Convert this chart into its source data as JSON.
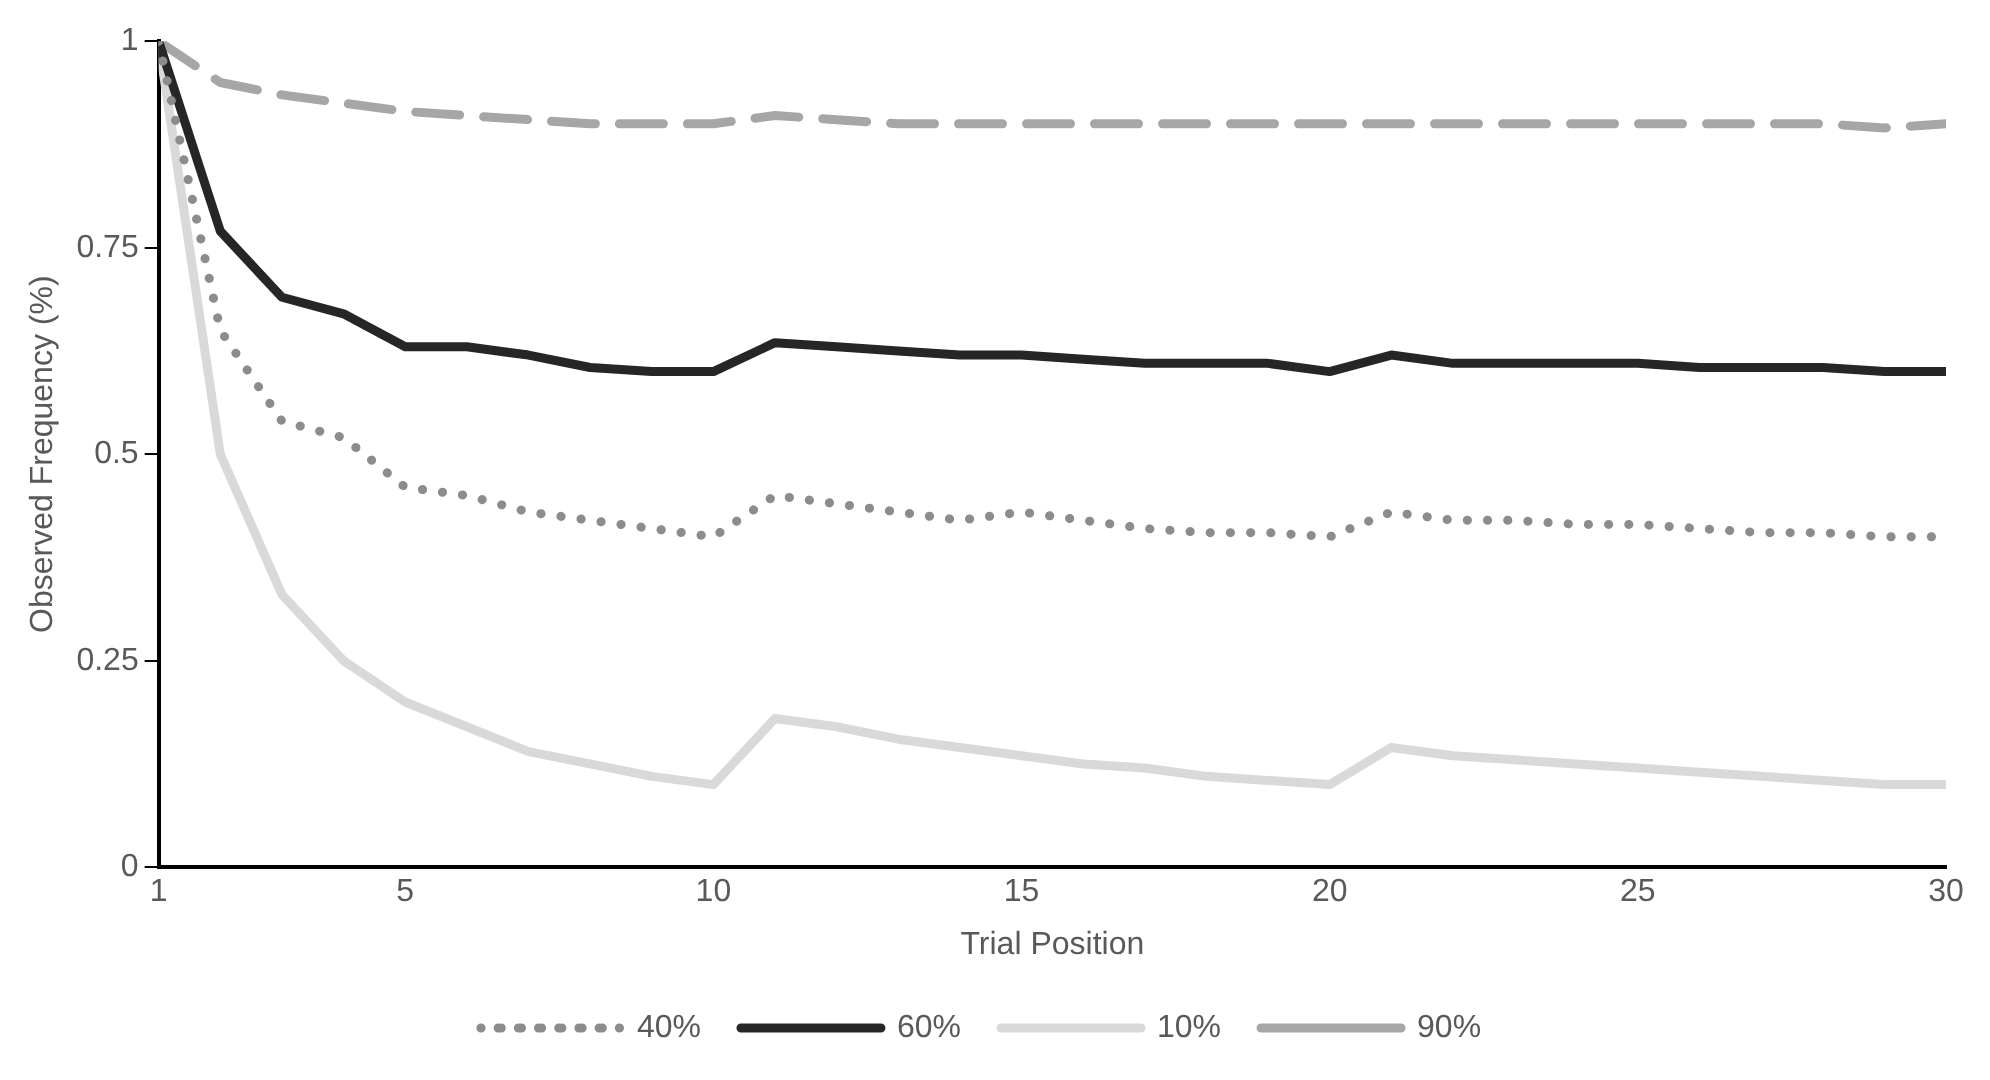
{
  "chart_data": {
    "type": "line",
    "xlabel": "Trial Position",
    "ylabel": "Observed Frequency (%)",
    "x": [
      1,
      2,
      3,
      4,
      5,
      6,
      7,
      8,
      9,
      10,
      11,
      12,
      13,
      14,
      15,
      16,
      17,
      18,
      19,
      20,
      21,
      22,
      23,
      24,
      25,
      26,
      27,
      28,
      29,
      30
    ],
    "xlim": [
      1,
      30
    ],
    "xticks": [
      1,
      5,
      10,
      15,
      20,
      25,
      30
    ],
    "ylim": [
      0,
      1
    ],
    "yticks": [
      0,
      0.25,
      0.5,
      0.75,
      1
    ],
    "grid": false,
    "legend": "bottom",
    "marker": "none",
    "series": [
      {
        "name": "40%",
        "color": "#8c8c8c",
        "line_style": "dotted",
        "values": [
          1,
          0.65,
          0.54,
          0.52,
          0.46,
          0.45,
          0.43,
          0.42,
          0.41,
          0.4,
          0.45,
          0.44,
          0.43,
          0.42,
          0.43,
          0.42,
          0.41,
          0.405,
          0.405,
          0.4,
          0.43,
          0.42,
          0.42,
          0.415,
          0.415,
          0.41,
          0.405,
          0.405,
          0.4,
          0.4
        ]
      },
      {
        "name": "60%",
        "color": "#262626",
        "line_style": "solid",
        "values": [
          1,
          0.77,
          0.69,
          0.67,
          0.63,
          0.63,
          0.62,
          0.605,
          0.6,
          0.6,
          0.635,
          0.63,
          0.625,
          0.62,
          0.62,
          0.615,
          0.61,
          0.61,
          0.61,
          0.6,
          0.62,
          0.61,
          0.61,
          0.61,
          0.61,
          0.605,
          0.605,
          0.605,
          0.6,
          0.6
        ]
      },
      {
        "name": "10%",
        "color": "#d9d9d9",
        "line_style": "solid",
        "values": [
          1,
          0.5,
          0.33,
          0.25,
          0.2,
          0.17,
          0.14,
          0.125,
          0.11,
          0.1,
          0.18,
          0.17,
          0.155,
          0.145,
          0.135,
          0.125,
          0.12,
          0.11,
          0.105,
          0.1,
          0.145,
          0.135,
          0.13,
          0.125,
          0.12,
          0.115,
          0.11,
          0.105,
          0.1,
          0.1
        ]
      },
      {
        "name": "90%",
        "color": "#a6a6a6",
        "line_style": "dashed",
        "values": [
          1,
          0.95,
          0.935,
          0.925,
          0.915,
          0.91,
          0.905,
          0.9,
          0.9,
          0.9,
          0.91,
          0.905,
          0.9,
          0.9,
          0.9,
          0.9,
          0.9,
          0.9,
          0.9,
          0.9,
          0.9,
          0.9,
          0.9,
          0.9,
          0.9,
          0.9,
          0.9,
          0.9,
          0.895,
          0.9
        ]
      }
    ]
  }
}
